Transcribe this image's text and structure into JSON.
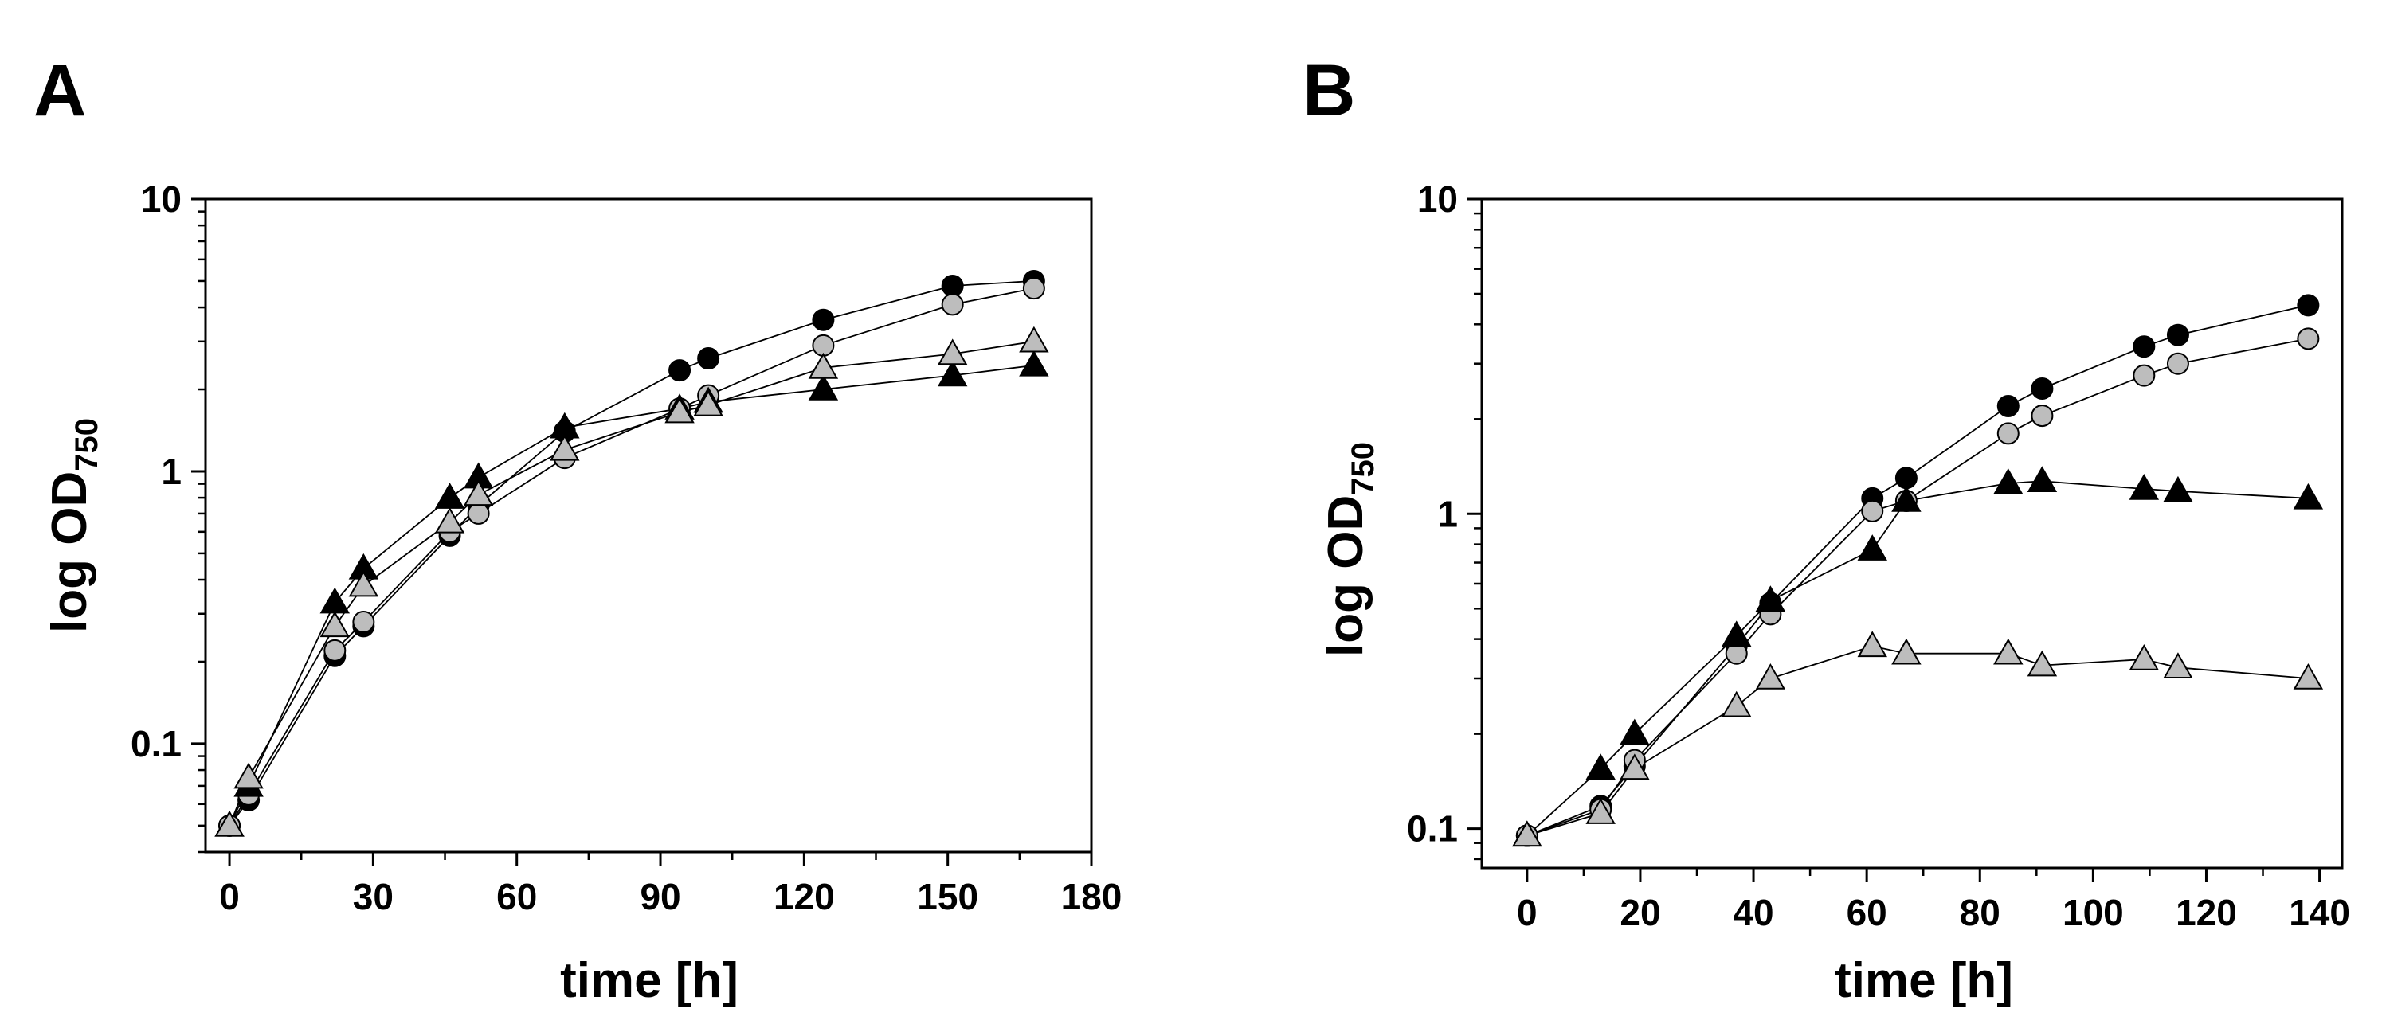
{
  "chart_data": [
    {
      "type": "line",
      "panel_label": "A",
      "xlabel": "time [h]",
      "ylabel": "log OD",
      "ylabel_subscript": "750",
      "y_scale": "log",
      "xlim": [
        -5,
        180
      ],
      "ylim": [
        0.04,
        10
      ],
      "xticks": [
        0,
        30,
        60,
        90,
        120,
        150,
        180
      ],
      "xtick_labels": [
        "0",
        "30",
        "60",
        "90",
        "120",
        "150",
        "180"
      ],
      "yticks": [
        0.1,
        1,
        10
      ],
      "ytick_labels": [
        "0.1",
        "1",
        "10"
      ],
      "grid": false,
      "series": [
        {
          "name": "black circles",
          "marker": "circle",
          "fill": "#000000",
          "x": [
            0,
            4,
            22,
            28,
            46,
            52,
            70,
            94,
            100,
            124,
            151,
            168
          ],
          "y": [
            0.05,
            0.062,
            0.21,
            0.27,
            0.58,
            0.75,
            1.4,
            2.35,
            2.6,
            3.6,
            4.8,
            5.0
          ]
        },
        {
          "name": "grey circles",
          "marker": "circle",
          "fill": "#bdbdbd",
          "x": [
            0,
            4,
            22,
            28,
            46,
            52,
            70,
            94,
            100,
            124,
            151,
            168
          ],
          "y": [
            0.05,
            0.065,
            0.22,
            0.28,
            0.6,
            0.7,
            1.12,
            1.7,
            1.9,
            2.9,
            4.1,
            4.7
          ]
        },
        {
          "name": "black triangles",
          "marker": "triangle",
          "fill": "#000000",
          "x": [
            0,
            4,
            22,
            28,
            46,
            52,
            70,
            94,
            100,
            124,
            151,
            168
          ],
          "y": [
            0.05,
            0.07,
            0.33,
            0.44,
            0.8,
            0.95,
            1.45,
            1.7,
            1.8,
            2.0,
            2.25,
            2.45
          ]
        },
        {
          "name": "grey triangles",
          "marker": "triangle",
          "fill": "#bdbdbd",
          "x": [
            0,
            4,
            22,
            28,
            46,
            52,
            70,
            94,
            100,
            124,
            151,
            168
          ],
          "y": [
            0.05,
            0.075,
            0.27,
            0.38,
            0.65,
            0.82,
            1.2,
            1.65,
            1.75,
            2.4,
            2.7,
            3.0
          ]
        }
      ]
    },
    {
      "type": "line",
      "panel_label": "B",
      "xlabel": "time [h]",
      "ylabel": "log OD",
      "ylabel_subscript": "750",
      "y_scale": "log",
      "xlim": [
        -8,
        144
      ],
      "ylim": [
        0.075,
        10
      ],
      "xticks": [
        0,
        20,
        40,
        60,
        80,
        100,
        120,
        140
      ],
      "xtick_labels": [
        "0",
        "20",
        "40",
        "60",
        "80",
        "100",
        "120",
        "140"
      ],
      "yticks": [
        0.1,
        1,
        10
      ],
      "ytick_labels": [
        "0.1",
        "1",
        "10"
      ],
      "grid": false,
      "series": [
        {
          "name": "black circles",
          "marker": "circle",
          "fill": "#000000",
          "x": [
            0,
            13,
            19,
            37,
            43,
            61,
            67,
            85,
            91,
            109,
            115,
            138
          ],
          "y": [
            0.095,
            0.118,
            0.158,
            0.38,
            0.52,
            1.12,
            1.3,
            2.2,
            2.5,
            3.4,
            3.7,
            4.6
          ]
        },
        {
          "name": "grey circles",
          "marker": "circle",
          "fill": "#bdbdbd",
          "x": [
            0,
            13,
            19,
            37,
            43,
            61,
            67,
            85,
            91,
            109,
            115,
            138
          ],
          "y": [
            0.095,
            0.115,
            0.165,
            0.36,
            0.48,
            1.02,
            1.1,
            1.8,
            2.05,
            2.75,
            3.0,
            3.6
          ]
        },
        {
          "name": "black triangles",
          "marker": "triangle",
          "fill": "#000000",
          "x": [
            0,
            13,
            19,
            37,
            43,
            61,
            67,
            85,
            91,
            109,
            115,
            138
          ],
          "y": [
            0.095,
            0.155,
            0.2,
            0.41,
            0.53,
            0.77,
            1.1,
            1.25,
            1.27,
            1.2,
            1.18,
            1.12
          ]
        },
        {
          "name": "grey triangles",
          "marker": "triangle",
          "fill": "#bdbdbd",
          "x": [
            0,
            13,
            19,
            37,
            43,
            61,
            67,
            85,
            91,
            109,
            115,
            138
          ],
          "y": [
            0.095,
            0.112,
            0.155,
            0.245,
            0.3,
            0.38,
            0.36,
            0.36,
            0.33,
            0.345,
            0.325,
            0.3
          ]
        }
      ]
    }
  ]
}
